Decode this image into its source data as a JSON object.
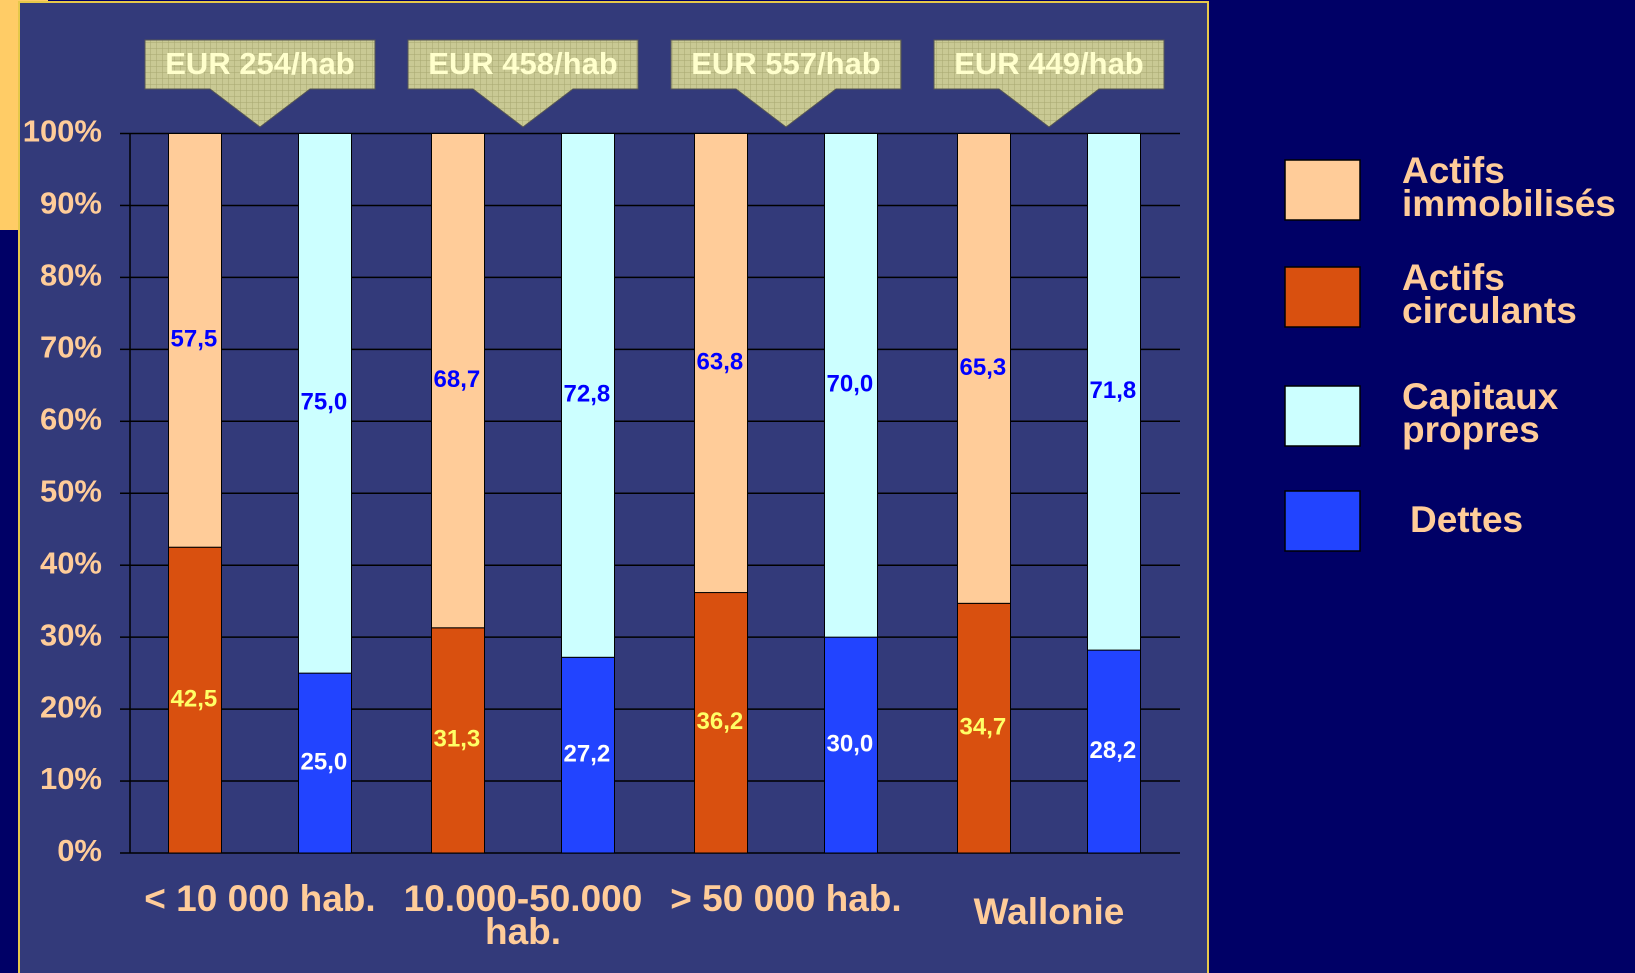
{
  "chart_data": {
    "type": "bar",
    "categories": [
      "< 10 000 hab.",
      "10.000-50.000 hab.",
      "> 50 000 hab.",
      "Wallonie"
    ],
    "annotations": [
      "EUR 254/hab",
      "EUR 458/hab",
      "EUR 557/hab",
      "EUR 449/hab"
    ],
    "series": [
      {
        "name": "Actifs immobilisés",
        "color": "#ffcc99",
        "values": [
          57.5,
          68.7,
          63.8,
          65.3
        ],
        "value_labels": [
          "57,5",
          "68,7",
          "63,8",
          "65,3"
        ]
      },
      {
        "name": "Actifs circulants",
        "color": "#d9500f",
        "values": [
          42.5,
          31.3,
          36.2,
          34.7
        ],
        "value_labels": [
          "42,5",
          "31,3",
          "36,2",
          "34,7"
        ]
      },
      {
        "name": "Capitaux propres",
        "color": "#ccffff",
        "values": [
          75.0,
          72.8,
          70.0,
          71.8
        ],
        "value_labels": [
          "75,0",
          "72,8",
          "70,0",
          "71,8"
        ]
      },
      {
        "name": "Dettes",
        "color": "#2244ff",
        "values": [
          25.0,
          27.2,
          30.0,
          28.2
        ],
        "value_labels": [
          "25,0",
          "27,2",
          "30,0",
          "28,2"
        ]
      }
    ],
    "ylim": [
      0,
      100
    ],
    "yticks": [
      {
        "value": 0,
        "label": "0%"
      },
      {
        "value": 10,
        "label": "10%"
      },
      {
        "value": 20,
        "label": "20%"
      },
      {
        "value": 30,
        "label": "30%"
      },
      {
        "value": 40,
        "label": "40%"
      },
      {
        "value": 50,
        "label": "50%"
      },
      {
        "value": 60,
        "label": "60%"
      },
      {
        "value": 70,
        "label": "70%"
      },
      {
        "value": 80,
        "label": "80%"
      },
      {
        "value": 90,
        "label": "90%"
      },
      {
        "value": 100,
        "label": "100%"
      }
    ],
    "grid": true,
    "legend": "right"
  }
}
